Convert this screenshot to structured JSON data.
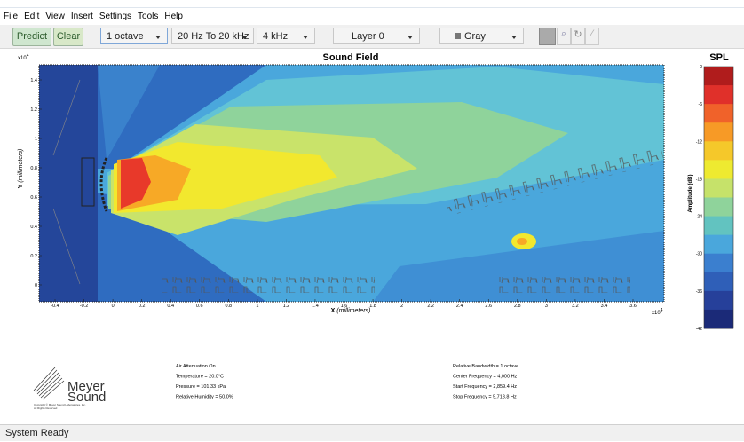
{
  "menu": [
    "File",
    "Edit",
    "View",
    "Insert",
    "Settings",
    "Tools",
    "Help"
  ],
  "toolbar": {
    "predict": "Predict",
    "clear": "Clear",
    "bandwidth": "1 octave",
    "range": "20 Hz To 20 kHz",
    "frequency": "4 kHz",
    "layer": "Layer 0",
    "color": "Gray"
  },
  "plot": {
    "title": "Sound Field",
    "x_label": "X",
    "x_unit": "(millimeters)",
    "y_label": "Y",
    "y_unit": "(millimeters)",
    "scale_base": "x10",
    "scale_exp": "4",
    "xticks": [
      "-0.4",
      "-0.2",
      "0",
      "0.2",
      "0.4",
      "0.6",
      "0.8",
      "1",
      "1.2",
      "1.4",
      "1.6",
      "1.8",
      "2",
      "2.2",
      "2.4",
      "2.6",
      "2.8",
      "3",
      "3.2",
      "3.4",
      "3.6"
    ],
    "yticks": [
      "0",
      "0.2",
      "0.4",
      "0.6",
      "0.8",
      "1",
      "1.2",
      "1.4"
    ]
  },
  "colorbar": {
    "title": "SPL",
    "label": "Amplitude (dB)",
    "ticks": [
      "0",
      "-6",
      "-12",
      "-18",
      "-24",
      "-30",
      "-36",
      "-42"
    ]
  },
  "footer": {
    "logo_top": "Meyer",
    "logo_bottom": "Sound",
    "copyright": "Copyright © Meyer Sound Laboratories, Inc.",
    "rights": "All Rights Reserved",
    "left": [
      "Air Attenuation On",
      "Temperature = 20.0°C",
      "Pressure = 101.33  kPa",
      "Relative Humidity = 50.0%"
    ],
    "right": [
      "Relative Bandwidth = 1 octave",
      "Center Frequency = 4,000 Hz",
      "Start Frequency = 2,859.4 Hz",
      "Stop Frequency = 5,718.8 Hz"
    ]
  },
  "status": "System Ready"
}
